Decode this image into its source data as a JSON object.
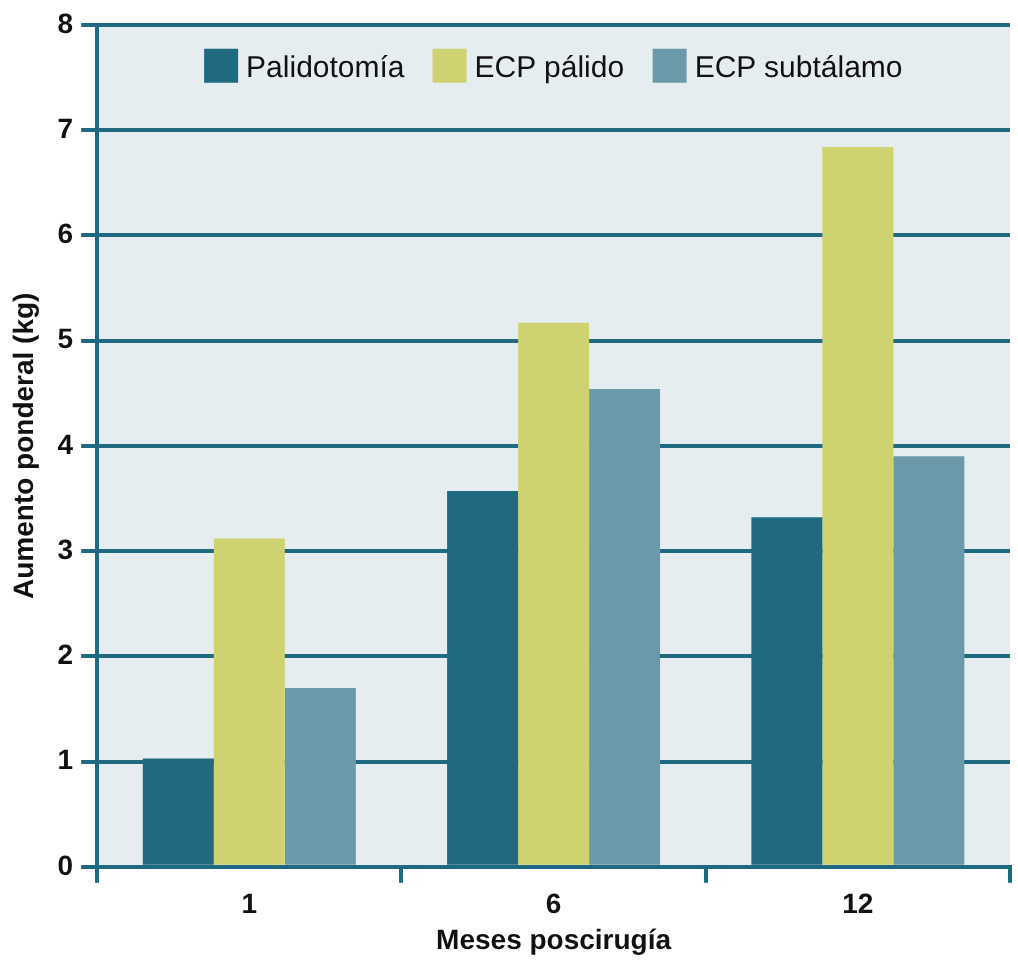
{
  "chart_data": {
    "type": "bar",
    "xlabel": "Meses poscirugía",
    "ylabel": "Aumento ponderal (kg)",
    "categories": [
      "1",
      "6",
      "12"
    ],
    "series": [
      {
        "name": "Palidotomía",
        "color": "#1f6a80",
        "values": [
          1.03,
          3.57,
          3.32
        ]
      },
      {
        "name": "ECP pálido",
        "color": "#cfd270",
        "values": [
          3.12,
          5.17,
          6.84
        ]
      },
      {
        "name": "ECP subtálamo",
        "color": "#6a9aa9",
        "values": [
          1.7,
          4.54,
          3.9
        ]
      }
    ],
    "ylim": [
      0,
      8
    ],
    "yticks": [
      0,
      1,
      2,
      3,
      4,
      5,
      6,
      7,
      8
    ],
    "grid": "y",
    "legend": "top"
  }
}
